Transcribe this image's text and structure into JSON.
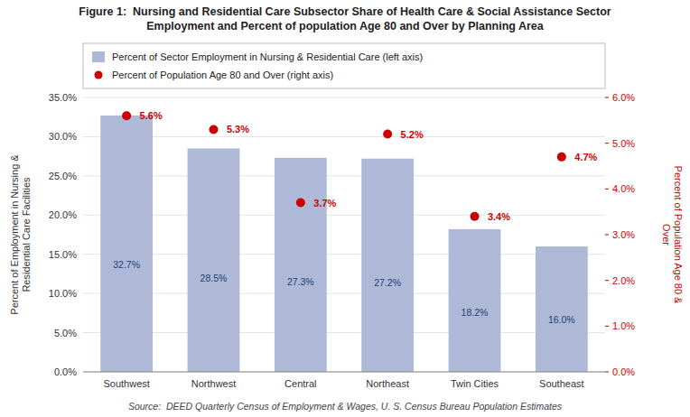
{
  "chart_data": {
    "type": "bar",
    "title": "Figure 1:  Nursing and Residential Care Subsector Share of Health Care & Social Assistance Sector\nEmployment and Percent of population Age 80 and Over by Planning Area",
    "source": "Source:  DEED Quarterly Census of Employment & Wages, U. S. Census Bureau Population Estimates",
    "categories": [
      "Southwest",
      "Northwest",
      "Central",
      "Northeast",
      "Twin Cities",
      "Southeast"
    ],
    "series": [
      {
        "name": "Percent of Sector Employment in Nursing & Residential Care (left axis)",
        "type": "bar",
        "color": "#adb9d6",
        "values": [
          32.7,
          28.5,
          27.3,
          27.2,
          18.2,
          16.0
        ],
        "value_labels": [
          "32.7%",
          "28.5%",
          "27.3%",
          "27.2%",
          "18.2%",
          "16.0%"
        ]
      },
      {
        "name": "Percent of Population Age 80 and Over (right axis)",
        "type": "scatter",
        "axis": "y2",
        "marker": "circle",
        "color": "#cc0000",
        "values": [
          5.6,
          5.3,
          3.7,
          5.2,
          3.4,
          4.7
        ],
        "value_labels": [
          "5.6%",
          "5.3%",
          "3.7%",
          "5.2%",
          "3.4%",
          "4.7%"
        ]
      }
    ],
    "ylabel": "Percent of Employment in Nursing &\nResidential Care Facilities",
    "y2label": "Percent of Population Age 80 &\nOver",
    "ylim": [
      0,
      35
    ],
    "yticks": [
      {
        "value": 0,
        "label": "0.0%"
      },
      {
        "value": 5,
        "label": "5.0%"
      },
      {
        "value": 10,
        "label": "10.0%"
      },
      {
        "value": 15,
        "label": "15.0%"
      },
      {
        "value": 20,
        "label": "20.0%"
      },
      {
        "value": 25,
        "label": "25.0%"
      },
      {
        "value": 30,
        "label": "30.0%"
      },
      {
        "value": 35,
        "label": "35.0%"
      }
    ],
    "y2lim": [
      0,
      6.0
    ],
    "y2ticks": [
      {
        "value": 0.0,
        "label": "0.0%"
      },
      {
        "value": 1.0,
        "label": "1.0%"
      },
      {
        "value": 2.0,
        "label": "2.0%"
      },
      {
        "value": 3.0,
        "label": "3.0%"
      },
      {
        "value": 4.0,
        "label": "4.0%"
      },
      {
        "value": 5.0,
        "label": "5.0%"
      },
      {
        "value": 6.0,
        "label": "6.0%"
      }
    ],
    "grid": true,
    "legend": "top",
    "data_labels": true
  }
}
